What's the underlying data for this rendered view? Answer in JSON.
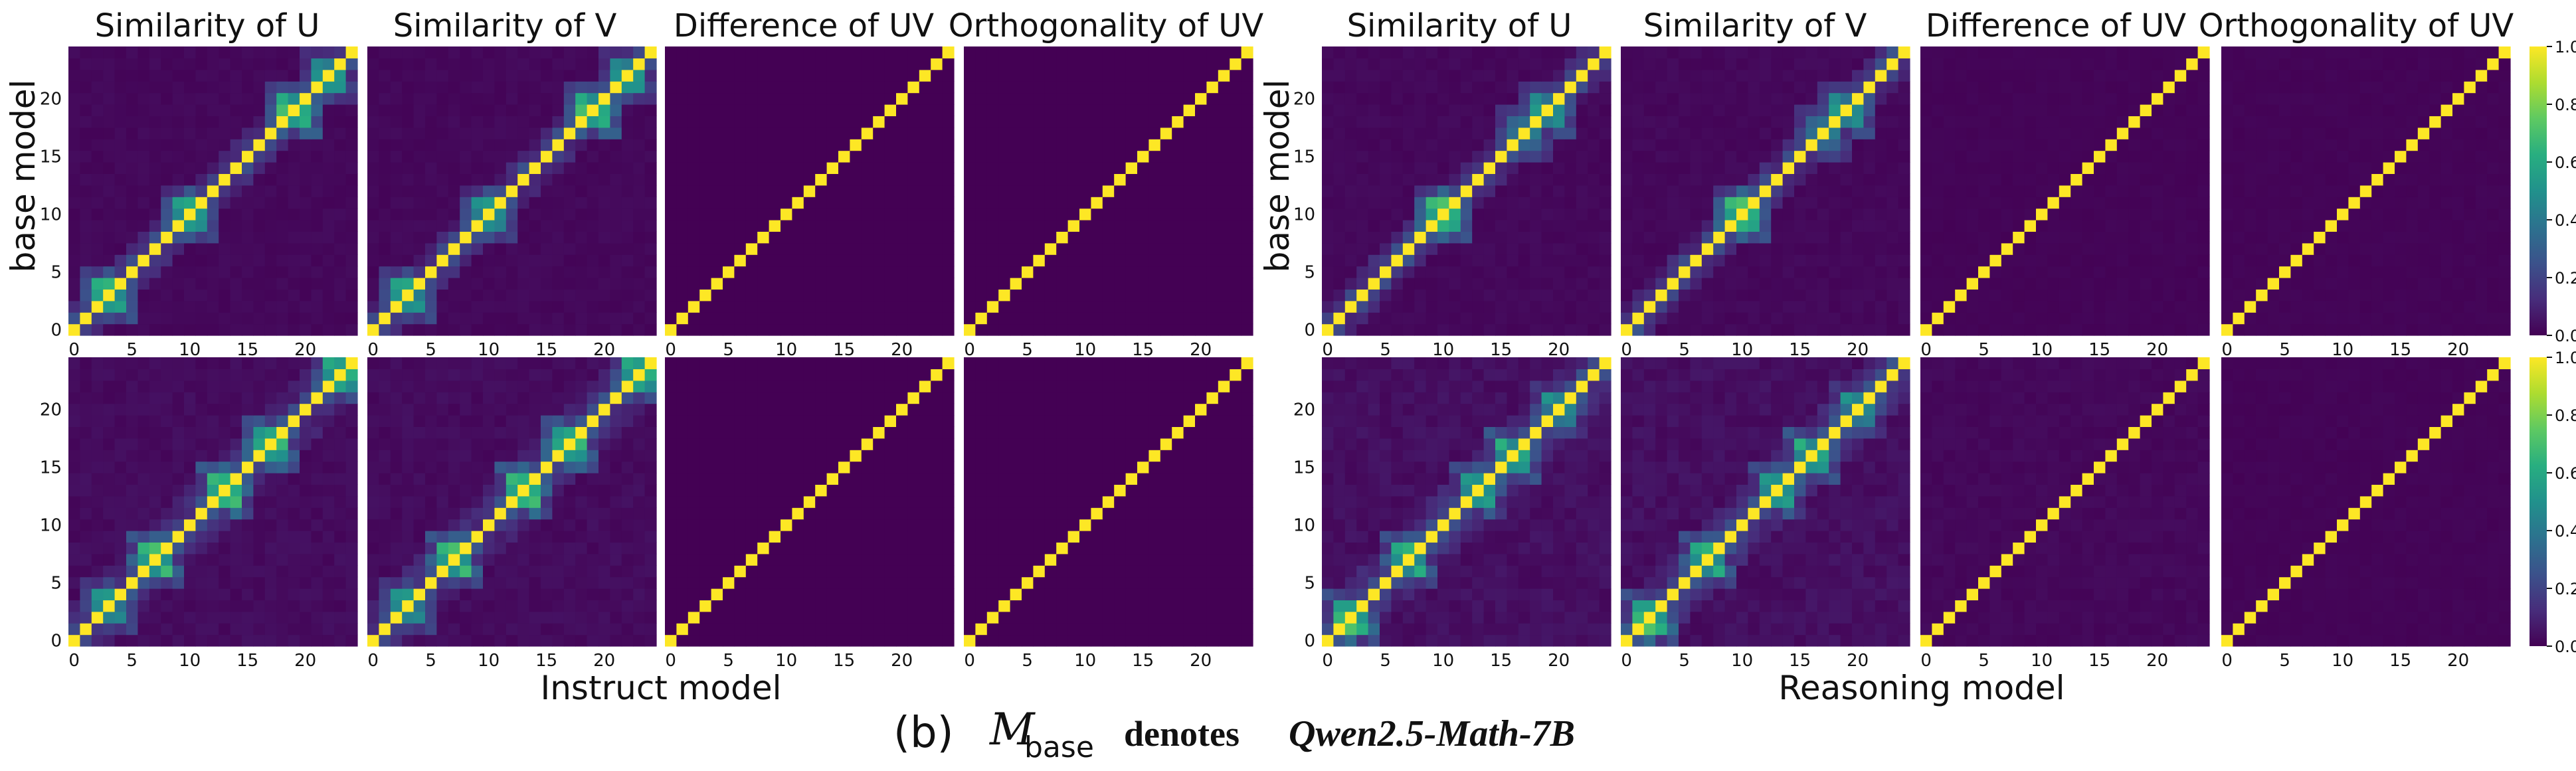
{
  "colors": {
    "viridis": [
      "#440154",
      "#472d7b",
      "#3b528b",
      "#2c728e",
      "#21918c",
      "#28ae80",
      "#5ec962",
      "#addc30",
      "#fde725"
    ],
    "background": "#ffffff",
    "text": "#111111"
  },
  "chart_data": {
    "type": "heatmap",
    "matrix_size": 25,
    "value_range": [
      0.0,
      1.0
    ],
    "x_ticks": [
      "0",
      "5",
      "10",
      "15",
      "20"
    ],
    "y_ticks": [
      "0",
      "5",
      "10",
      "15",
      "20"
    ],
    "colorbar_ticks": [
      "0.0",
      "0.2",
      "0.4",
      "0.6",
      "0.8",
      "1.0"
    ],
    "column_titles": [
      "Similarity of U",
      "Similarity of V",
      "Difference of UV",
      "Orthogonality of UV",
      "Similarity of U",
      "Similarity of V",
      "Difference of UV",
      "Orthogonality of UV"
    ],
    "ylabel": "base model",
    "groups": [
      {
        "xlabel": "Instruct model"
      },
      {
        "xlabel": "Reasoning model"
      }
    ],
    "diagonal_value": 1.0,
    "panels": [
      {
        "row": 0,
        "group": 0,
        "metric": "Similarity of U",
        "background": 0.02,
        "spread": 2,
        "bright_spots": [
          {
            "i": 3,
            "v": 0.55
          },
          {
            "i": 10,
            "v": 0.5
          },
          {
            "i": 19,
            "v": 0.58
          },
          {
            "i": 22,
            "v": 0.45
          }
        ]
      },
      {
        "row": 0,
        "group": 0,
        "metric": "Similarity of V",
        "background": 0.02,
        "spread": 2,
        "bright_spots": [
          {
            "i": 3,
            "v": 0.5
          },
          {
            "i": 10,
            "v": 0.45
          },
          {
            "i": 19,
            "v": 0.58
          },
          {
            "i": 22,
            "v": 0.45
          }
        ]
      },
      {
        "row": 0,
        "group": 0,
        "metric": "Difference of UV",
        "background": 0.0,
        "spread": 0,
        "bright_spots": []
      },
      {
        "row": 0,
        "group": 0,
        "metric": "Orthogonality of UV",
        "background": 0.0,
        "spread": 0,
        "bright_spots": []
      },
      {
        "row": 0,
        "group": 1,
        "metric": "Similarity of U",
        "background": 0.02,
        "spread": 2,
        "bright_spots": [
          {
            "i": 10,
            "v": 0.6
          },
          {
            "i": 17,
            "v": 0.38
          },
          {
            "i": 19,
            "v": 0.45
          }
        ]
      },
      {
        "row": 0,
        "group": 1,
        "metric": "Similarity of V",
        "background": 0.02,
        "spread": 2,
        "bright_spots": [
          {
            "i": 10,
            "v": 0.6
          },
          {
            "i": 17,
            "v": 0.38
          },
          {
            "i": 19,
            "v": 0.45
          }
        ]
      },
      {
        "row": 0,
        "group": 1,
        "metric": "Difference of UV",
        "background": 0.01,
        "spread": 0,
        "bright_spots": []
      },
      {
        "row": 0,
        "group": 1,
        "metric": "Orthogonality of UV",
        "background": 0.01,
        "spread": 0,
        "bright_spots": []
      },
      {
        "row": 1,
        "group": 0,
        "metric": "Similarity of U",
        "background": 0.03,
        "spread": 3,
        "bright_spots": [
          {
            "i": 3,
            "v": 0.45
          },
          {
            "i": 7,
            "v": 0.6
          },
          {
            "i": 13,
            "v": 0.65
          },
          {
            "i": 17,
            "v": 0.62
          },
          {
            "i": 23,
            "v": 0.55
          }
        ]
      },
      {
        "row": 1,
        "group": 0,
        "metric": "Similarity of V",
        "background": 0.03,
        "spread": 3,
        "bright_spots": [
          {
            "i": 3,
            "v": 0.45
          },
          {
            "i": 7,
            "v": 0.6
          },
          {
            "i": 13,
            "v": 0.65
          },
          {
            "i": 17,
            "v": 0.62
          },
          {
            "i": 23,
            "v": 0.55
          }
        ]
      },
      {
        "row": 1,
        "group": 0,
        "metric": "Difference of UV",
        "background": 0.0,
        "spread": 0,
        "bright_spots": []
      },
      {
        "row": 1,
        "group": 0,
        "metric": "Orthogonality of UV",
        "background": 0.0,
        "spread": 0,
        "bright_spots": []
      },
      {
        "row": 1,
        "group": 1,
        "metric": "Similarity of U",
        "background": 0.04,
        "spread": 3,
        "bright_spots": [
          {
            "i": 2,
            "v": 0.62
          },
          {
            "i": 7,
            "v": 0.55
          },
          {
            "i": 13,
            "v": 0.52
          },
          {
            "i": 16,
            "v": 0.55
          },
          {
            "i": 20,
            "v": 0.45
          }
        ]
      },
      {
        "row": 1,
        "group": 1,
        "metric": "Similarity of V",
        "background": 0.04,
        "spread": 3,
        "bright_spots": [
          {
            "i": 2,
            "v": 0.62
          },
          {
            "i": 7,
            "v": 0.55
          },
          {
            "i": 13,
            "v": 0.52
          },
          {
            "i": 16,
            "v": 0.55
          },
          {
            "i": 20,
            "v": 0.45
          }
        ]
      },
      {
        "row": 1,
        "group": 1,
        "metric": "Difference of UV",
        "background": 0.02,
        "spread": 0,
        "bright_spots": []
      },
      {
        "row": 1,
        "group": 1,
        "metric": "Orthogonality of UV",
        "background": 0.01,
        "spread": 0,
        "bright_spots": []
      }
    ]
  },
  "caption": {
    "label": "(b)",
    "math_symbol": "M",
    "math_subscript": "base",
    "text": "denotes",
    "model_name": "Qwen2.5-Math-7B"
  }
}
